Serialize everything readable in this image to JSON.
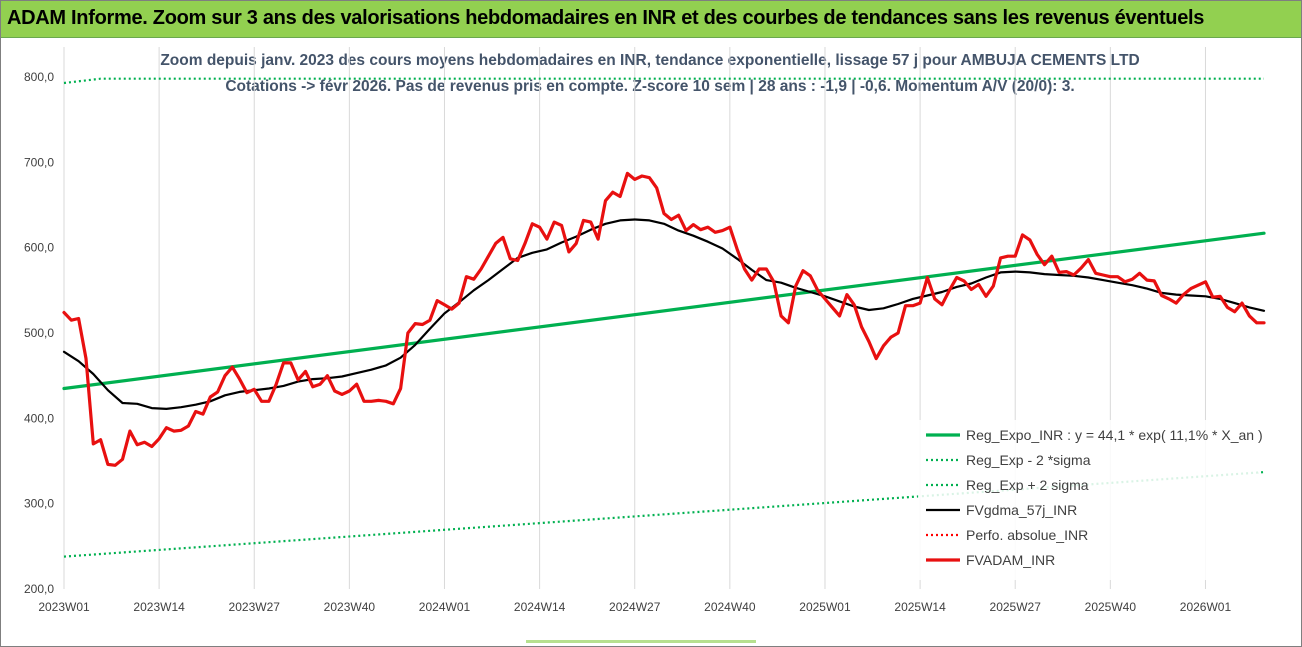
{
  "banner": {
    "title": "ADAM Informe. Zoom sur 3 ans des valorisations hebdomadaires en INR et des courbes de tendances sans les revenus éventuels",
    "color": "#92d050"
  },
  "chart_data": {
    "type": "line",
    "title": "Zoom depuis janv. 2023 des cours moyens hebdomadaires en INR, tendance exponentielle, lissage 57 j pour AMBUJA CEMENTS LTD",
    "subtitle": "Cotations -> févr 2026.  Pas de revenus pris en compte. Z-score 10 sem | 28 ans : -1,9 | -0,6. Momentum A/V (20/0): 3.",
    "xlabel": "",
    "ylabel": "",
    "ylim": [
      200,
      800
    ],
    "yticks": [
      "200,0",
      "300,0",
      "400,0",
      "500,0",
      "600,0",
      "700,0",
      "800,0"
    ],
    "xlim": [
      0,
      164
    ],
    "xticks": [
      {
        "x": 0,
        "label": "2023W01"
      },
      {
        "x": 13,
        "label": "2023W14"
      },
      {
        "x": 26,
        "label": "2023W27"
      },
      {
        "x": 39,
        "label": "2023W40"
      },
      {
        "x": 52,
        "label": "2024W01"
      },
      {
        "x": 65,
        "label": "2024W14"
      },
      {
        "x": 78,
        "label": "2024W27"
      },
      {
        "x": 91,
        "label": "2024W40"
      },
      {
        "x": 104,
        "label": "2025W01"
      },
      {
        "x": 117,
        "label": "2025W14"
      },
      {
        "x": 130,
        "label": "2025W27"
      },
      {
        "x": 143,
        "label": "2025W40"
      },
      {
        "x": 156,
        "label": "2026W01"
      }
    ],
    "grid": "vertical",
    "legend_position": "bottom-right",
    "series": [
      {
        "name": "Reg_Expo_INR : y = 44,1 * exp( 11,1% *  X_an )",
        "color": "#00b050",
        "style": "solid-thick",
        "x": [
          0,
          164
        ],
        "values": [
          435,
          617
        ]
      },
      {
        "name": "Reg_Exp - 2 *sigma",
        "color": "#00b050",
        "style": "dotted",
        "x": [
          0,
          164
        ],
        "values": [
          238,
          337
        ]
      },
      {
        "name": "Reg_Exp + 2 sigma",
        "color": "#00b050",
        "style": "dotted",
        "x": [
          0,
          5,
          17,
          160,
          164
        ],
        "values": [
          793,
          798,
          798,
          798,
          798
        ]
      },
      {
        "name": "FVgdma_57j_INR",
        "color": "#000000",
        "style": "solid",
        "x": [
          0,
          2,
          4,
          6,
          8,
          10,
          12,
          14,
          16,
          18,
          20,
          22,
          24,
          26,
          28,
          30,
          32,
          34,
          36,
          38,
          40,
          42,
          44,
          46,
          48,
          50,
          52,
          54,
          56,
          58,
          60,
          62,
          64,
          66,
          68,
          70,
          72,
          74,
          76,
          78,
          80,
          82,
          84,
          86,
          88,
          90,
          92,
          94,
          96,
          98,
          100,
          102,
          104,
          106,
          108,
          110,
          112,
          114,
          116,
          118,
          120,
          122,
          124,
          126,
          128,
          130,
          132,
          134,
          136,
          138,
          140,
          142,
          144,
          146,
          148,
          150,
          152,
          154,
          156,
          158,
          160,
          162,
          164
        ],
        "values": [
          478,
          467,
          452,
          433,
          418,
          417,
          412,
          411,
          413,
          416,
          420,
          427,
          431,
          433,
          435,
          438,
          443,
          446,
          447,
          449,
          453,
          457,
          462,
          471,
          486,
          505,
          523,
          536,
          550,
          562,
          575,
          588,
          594,
          598,
          606,
          613,
          621,
          628,
          632,
          633,
          632,
          628,
          620,
          614,
          607,
          599,
          587,
          574,
          562,
          559,
          553,
          548,
          543,
          537,
          531,
          527,
          529,
          534,
          540,
          544,
          548,
          554,
          558,
          565,
          571,
          572,
          571,
          569,
          568,
          567,
          565,
          562,
          559,
          556,
          552,
          547,
          545,
          544,
          543,
          540,
          535,
          530,
          526
        ]
      },
      {
        "name": "Perfo. absolue_INR",
        "color": "#ff0000",
        "style": "dotted",
        "x": [],
        "values": []
      },
      {
        "name": "FVADAM_INR",
        "color": "#e81010",
        "style": "solid-thick",
        "x": [
          0,
          1,
          2,
          3,
          4,
          5,
          6,
          7,
          8,
          9,
          10,
          11,
          12,
          13,
          14,
          15,
          16,
          17,
          18,
          19,
          20,
          21,
          22,
          23,
          24,
          25,
          26,
          27,
          28,
          29,
          30,
          31,
          32,
          33,
          34,
          35,
          36,
          37,
          38,
          39,
          40,
          41,
          42,
          43,
          44,
          45,
          46,
          47,
          48,
          49,
          50,
          51,
          52,
          53,
          54,
          55,
          56,
          57,
          58,
          59,
          60,
          61,
          62,
          63,
          64,
          65,
          66,
          67,
          68,
          69,
          70,
          71,
          72,
          73,
          74,
          75,
          76,
          77,
          78,
          79,
          80,
          81,
          82,
          83,
          84,
          85,
          86,
          87,
          88,
          89,
          90,
          91,
          92,
          93,
          94,
          95,
          96,
          97,
          98,
          99,
          100,
          101,
          102,
          103,
          104,
          105,
          106,
          107,
          108,
          109,
          110,
          111,
          112,
          113,
          114,
          115,
          116,
          117,
          118,
          119,
          120,
          121,
          122,
          123,
          124,
          125,
          126,
          127,
          128,
          129,
          130,
          131,
          132,
          133,
          134,
          135,
          136,
          137,
          138,
          139,
          140,
          141,
          142,
          143,
          144,
          145,
          146,
          147,
          148,
          149,
          150,
          151,
          152,
          153,
          154,
          155,
          156,
          157,
          158,
          159,
          160,
          161,
          162,
          163,
          164
        ],
        "values": [
          524,
          515,
          517,
          470,
          370,
          375,
          346,
          345,
          352,
          385,
          369,
          372,
          367,
          376,
          389,
          385,
          386,
          391,
          408,
          405,
          425,
          431,
          450,
          460,
          446,
          430,
          434,
          420,
          420,
          440,
          465,
          465,
          445,
          455,
          437,
          440,
          450,
          432,
          428,
          432,
          440,
          420,
          420,
          421,
          420,
          417,
          435,
          500,
          511,
          510,
          515,
          538,
          533,
          528,
          535,
          566,
          563,
          575,
          590,
          605,
          612,
          587,
          585,
          605,
          628,
          624,
          610,
          630,
          626,
          595,
          605,
          632,
          630,
          610,
          655,
          665,
          660,
          687,
          680,
          684,
          682,
          670,
          640,
          633,
          638,
          620,
          627,
          621,
          624,
          618,
          620,
          624,
          598,
          575,
          562,
          575,
          575,
          560,
          520,
          512,
          555,
          573,
          567,
          550,
          540,
          530,
          520,
          545,
          533,
          507,
          490,
          470,
          485,
          495,
          500,
          532,
          532,
          535,
          565,
          540,
          533,
          550,
          565,
          561,
          551,
          557,
          543,
          555,
          588,
          590,
          590,
          615,
          609,
          592,
          580,
          590,
          571,
          572,
          568,
          576,
          586,
          570,
          568,
          566,
          566,
          560,
          563,
          570,
          562,
          561,
          544,
          540,
          535,
          545,
          552,
          556,
          560,
          542,
          543,
          530,
          525,
          535,
          520,
          512,
          512
        ]
      }
    ]
  }
}
